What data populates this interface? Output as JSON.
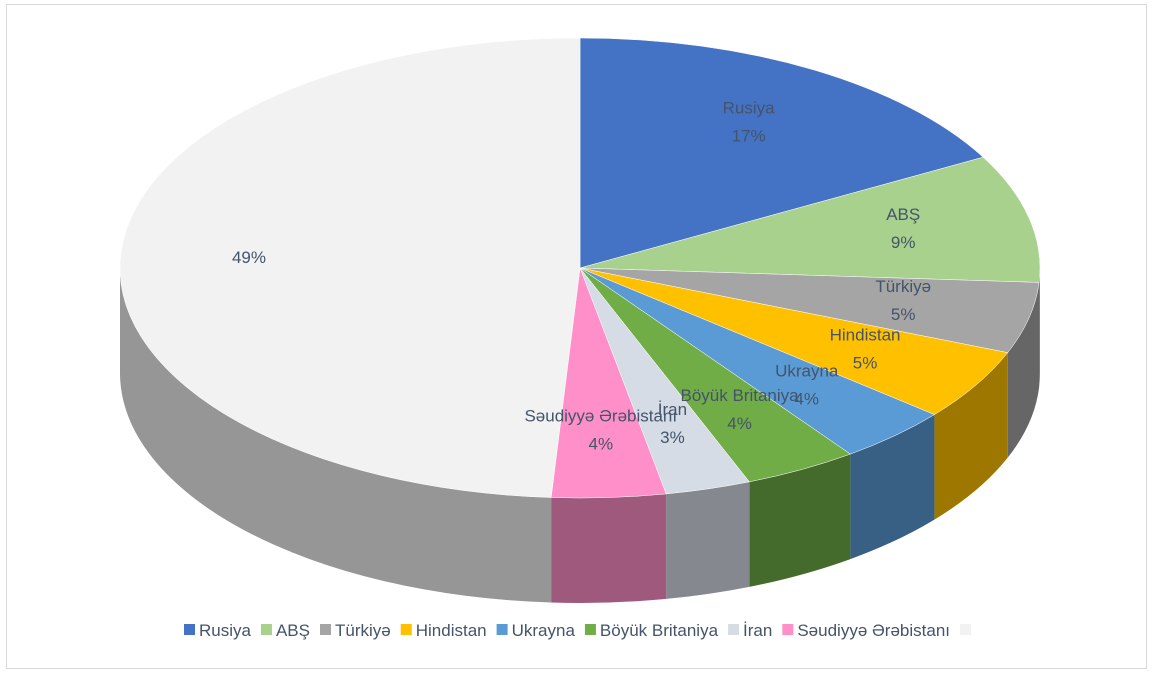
{
  "chart_data": {
    "type": "pie",
    "categories": [
      "Rusiya",
      "ABŞ",
      "Türkiyə",
      "Hindistan",
      "Ukrayna",
      "Böyük Britaniya",
      "İran",
      "Səudiyyə Ərəbistanı",
      null
    ],
    "values": [
      17,
      9,
      5,
      5,
      4,
      4,
      3,
      4,
      49
    ],
    "value_labels": [
      "17%",
      "9%",
      "5%",
      "5%",
      "4%",
      "4%",
      "3%",
      "4%",
      "49%"
    ],
    "colors": [
      "#4472c4",
      "#a9d18e",
      "#a5a5a5",
      "#ffc000",
      "#5b9bd5",
      "#70ad47",
      "#d6dce5",
      "#ff8fc8",
      "#f2f2f2"
    ],
    "legend": "bottom"
  }
}
